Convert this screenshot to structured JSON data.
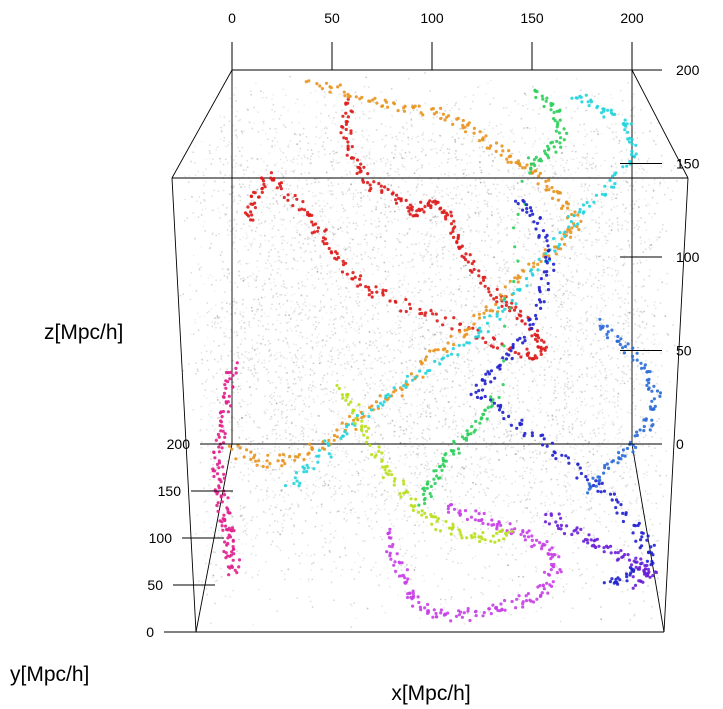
{
  "chart_data": {
    "type": "scatter",
    "subtype": "3d-point-cloud-with-colored-paths",
    "title": "",
    "xlabel": "x[Mpc/h]",
    "ylabel": "y[Mpc/h]",
    "zlabel": "z[Mpc/h]",
    "xlim": [
      0,
      200
    ],
    "ylim": [
      0,
      200
    ],
    "zlim": [
      0,
      200
    ],
    "x_ticks": [
      "0",
      "50",
      "100",
      "150",
      "200"
    ],
    "y_ticks": [
      "0",
      "50",
      "100",
      "150",
      "200"
    ],
    "z_ticks": [
      "0",
      "50",
      "100",
      "150",
      "200"
    ],
    "grid": false,
    "legend": "none",
    "background_points_color": "#000000",
    "series": [
      {
        "color": "#dd1a1a",
        "points": [
          [
            60,
            175,
            190
          ],
          [
            58,
            180,
            175
          ],
          [
            62,
            178,
            160
          ],
          [
            70,
            170,
            150
          ],
          [
            85,
            160,
            145
          ],
          [
            92,
            150,
            140
          ],
          [
            100,
            140,
            150
          ],
          [
            108,
            120,
            150
          ],
          [
            112,
            110,
            140
          ],
          [
            118,
            100,
            130
          ],
          [
            128,
            90,
            120
          ],
          [
            138,
            85,
            115
          ],
          [
            146,
            80,
            105
          ],
          [
            150,
            85,
            95
          ],
          [
            140,
            95,
            90
          ],
          [
            120,
            110,
            95
          ],
          [
            100,
            120,
            100
          ],
          [
            80,
            130,
            105
          ],
          [
            66,
            140,
            110
          ],
          [
            55,
            150,
            120
          ],
          [
            45,
            160,
            130
          ],
          [
            35,
            170,
            140
          ],
          [
            20,
            180,
            150
          ],
          [
            12,
            190,
            135
          ],
          [
            8,
            195,
            120
          ]
        ]
      },
      {
        "color": "#e8931e",
        "points": [
          [
            40,
            195,
            195
          ],
          [
            60,
            190,
            190
          ],
          [
            80,
            185,
            185
          ],
          [
            100,
            178,
            185
          ],
          [
            115,
            170,
            180
          ],
          [
            128,
            165,
            172
          ],
          [
            140,
            160,
            165
          ],
          [
            150,
            155,
            158
          ],
          [
            160,
            150,
            150
          ],
          [
            168,
            142,
            140
          ],
          [
            160,
            132,
            132
          ],
          [
            145,
            120,
            125
          ],
          [
            130,
            110,
            110
          ],
          [
            115,
            100,
            100
          ],
          [
            100,
            90,
            90
          ],
          [
            85,
            80,
            78
          ],
          [
            70,
            70,
            70
          ],
          [
            55,
            60,
            62
          ],
          [
            40,
            50,
            58
          ],
          [
            28,
            40,
            60
          ],
          [
            15,
            30,
            70
          ]
        ]
      },
      {
        "color": "#22d4dd",
        "points": [
          [
            170,
            190,
            190
          ],
          [
            182,
            180,
            185
          ],
          [
            195,
            170,
            180
          ],
          [
            195,
            160,
            165
          ],
          [
            180,
            150,
            150
          ],
          [
            165,
            140,
            140
          ],
          [
            150,
            125,
            125
          ],
          [
            135,
            110,
            110
          ],
          [
            120,
            95,
            98
          ],
          [
            100,
            80,
            90
          ],
          [
            80,
            65,
            80
          ],
          [
            62,
            50,
            70
          ],
          [
            50,
            40,
            60
          ],
          [
            40,
            30,
            52
          ]
        ]
      },
      {
        "color": "#2ccf5a",
        "points": [
          [
            150,
            160,
            200
          ],
          [
            158,
            162,
            190
          ],
          [
            162,
            165,
            175
          ],
          [
            155,
            168,
            165
          ],
          [
            145,
            170,
            158
          ],
          [
            130,
            120,
            60
          ],
          [
            122,
            110,
            52
          ],
          [
            114,
            100,
            46
          ],
          [
            106,
            90,
            40
          ],
          [
            100,
            80,
            34
          ],
          [
            96,
            70,
            30
          ]
        ]
      },
      {
        "color": "#1f1fcf",
        "points": [
          [
            140,
            150,
            150
          ],
          [
            150,
            140,
            140
          ],
          [
            155,
            130,
            125
          ],
          [
            150,
            115,
            110
          ],
          [
            140,
            100,
            95
          ],
          [
            130,
            90,
            85
          ],
          [
            120,
            80,
            78
          ],
          [
            135,
            70,
            70
          ],
          [
            150,
            60,
            62
          ],
          [
            165,
            50,
            52
          ],
          [
            180,
            40,
            42
          ],
          [
            190,
            30,
            32
          ],
          [
            195,
            20,
            25
          ],
          [
            185,
            12,
            20
          ],
          [
            175,
            6,
            18
          ]
        ]
      },
      {
        "color": "#2a6ad8",
        "points": [
          [
            175,
            110,
            100
          ],
          [
            185,
            100,
            95
          ],
          [
            195,
            90,
            85
          ],
          [
            200,
            75,
            78
          ],
          [
            195,
            60,
            70
          ],
          [
            185,
            50,
            62
          ],
          [
            175,
            40,
            55
          ],
          [
            165,
            32,
            50
          ]
        ]
      },
      {
        "color": "#6a1fd6",
        "points": [
          [
            150,
            30,
            40
          ],
          [
            160,
            25,
            35
          ],
          [
            170,
            20,
            32
          ],
          [
            180,
            15,
            28
          ],
          [
            190,
            10,
            25
          ],
          [
            195,
            8,
            22
          ],
          [
            185,
            5,
            20
          ]
        ]
      },
      {
        "color": "#c63fe6",
        "points": [
          [
            80,
            40,
            30
          ],
          [
            85,
            30,
            20
          ],
          [
            90,
            20,
            12
          ],
          [
            95,
            10,
            8
          ],
          [
            105,
            5,
            6
          ],
          [
            118,
            8,
            5
          ],
          [
            130,
            12,
            6
          ],
          [
            142,
            16,
            8
          ],
          [
            150,
            20,
            12
          ],
          [
            155,
            28,
            18
          ],
          [
            150,
            35,
            24
          ],
          [
            140,
            40,
            28
          ],
          [
            130,
            45,
            30
          ],
          [
            118,
            50,
            32
          ],
          [
            105,
            55,
            33
          ]
        ]
      },
      {
        "color": "#b8e01c",
        "points": [
          [
            60,
            70,
            85
          ],
          [
            68,
            60,
            75
          ],
          [
            75,
            50,
            65
          ],
          [
            82,
            40,
            55
          ],
          [
            90,
            30,
            48
          ],
          [
            100,
            25,
            40
          ],
          [
            112,
            22,
            36
          ],
          [
            125,
            20,
            34
          ],
          [
            135,
            22,
            36
          ]
        ]
      },
      {
        "color": "#e01f8c",
        "points": [
          [
            10,
            110,
            80
          ],
          [
            8,
            100,
            70
          ],
          [
            6,
            90,
            60
          ],
          [
            5,
            80,
            50
          ],
          [
            6,
            70,
            42
          ],
          [
            8,
            60,
            36
          ],
          [
            10,
            50,
            30
          ],
          [
            12,
            40,
            26
          ],
          [
            14,
            30,
            22
          ],
          [
            16,
            20,
            18
          ]
        ]
      }
    ]
  }
}
